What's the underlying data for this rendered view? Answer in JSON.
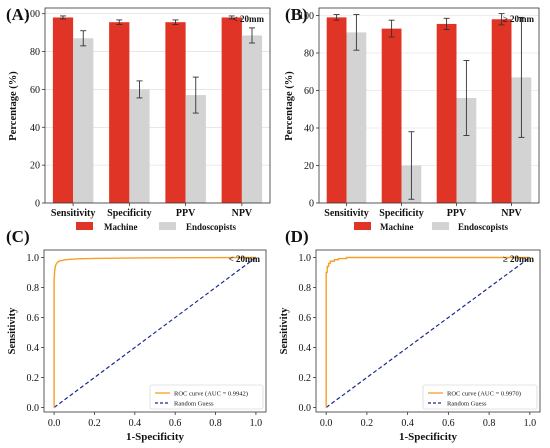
{
  "panels": [
    {
      "label": "(A)",
      "annotation": "< 20mm"
    },
    {
      "label": "(B)",
      "annotation": "≥ 20mm"
    },
    {
      "label": "(C)",
      "annotation": "< 20mm"
    },
    {
      "label": "(D)",
      "annotation": "≥ 20mm"
    }
  ],
  "bar_legend": {
    "machine": "Machine",
    "endoscopists": "Endoscopists"
  },
  "colors": {
    "machine": "#e03426",
    "endoscopists": "#d3d3d3",
    "roc": "#f5a027",
    "random": "#1a2a8c",
    "error": "#333333"
  },
  "chart_data": [
    {
      "type": "bar",
      "panel": "A",
      "annotation": "< 20mm",
      "categories": [
        "Sensitivity",
        "Specificity",
        "PPV",
        "NPV"
      ],
      "series": [
        {
          "name": "Machine",
          "values": [
            98,
            95.5,
            95.5,
            98
          ],
          "err": [
            0.8,
            1.2,
            1.2,
            0.8
          ]
        },
        {
          "name": "Endoscopists",
          "values": [
            87,
            60,
            57,
            88.5
          ],
          "err": [
            4,
            4.5,
            9.5,
            4
          ]
        }
      ],
      "ylabel": "Percentage (%)",
      "ylim": [
        0,
        103
      ],
      "yticks": [
        0,
        20,
        40,
        60,
        80,
        100
      ],
      "grid": true,
      "legend": "bottom"
    },
    {
      "type": "bar",
      "panel": "B",
      "annotation": "≥ 20mm",
      "categories": [
        "Sensitivity",
        "Specificity",
        "PPV",
        "NPV"
      ],
      "series": [
        {
          "name": "Machine",
          "values": [
            99,
            93,
            95.5,
            98
          ],
          "err": [
            1.5,
            4.5,
            3,
            3
          ]
        },
        {
          "name": "Endoscopists",
          "values": [
            91,
            20,
            56,
            67
          ],
          "err": [
            9.5,
            18,
            20,
            32
          ]
        }
      ],
      "ylabel": "Percentage (%)",
      "ylim": [
        0,
        104
      ],
      "yticks": [
        0,
        20,
        40,
        60,
        80,
        100
      ],
      "grid": true,
      "legend": "bottom"
    },
    {
      "type": "line",
      "panel": "C",
      "annotation": "< 20mm",
      "xlabel": "1-Specificity",
      "ylabel": "Sensitivity",
      "xlim": [
        -0.05,
        1.05
      ],
      "ylim": [
        -0.03,
        1.05
      ],
      "xticks": [
        0.0,
        0.2,
        0.4,
        0.6,
        0.8,
        1.0
      ],
      "yticks": [
        0.0,
        0.2,
        0.4,
        0.6,
        0.8,
        1.0
      ],
      "series": [
        {
          "name": "ROC curve (AUC = 0.9942)",
          "x": [
            0,
            0,
            0.003,
            0.006,
            0.01,
            0.015,
            0.02,
            0.03,
            0.05,
            0.08,
            0.12,
            0.2,
            0.35,
            0.5,
            0.7,
            1.0
          ],
          "y": [
            0,
            0.85,
            0.91,
            0.94,
            0.955,
            0.965,
            0.972,
            0.978,
            0.984,
            0.988,
            0.991,
            0.994,
            0.996,
            0.998,
            0.999,
            1.0
          ]
        },
        {
          "name": "Random Guess",
          "x": [
            0,
            1
          ],
          "y": [
            0,
            1
          ]
        }
      ],
      "legend": "bottom-right"
    },
    {
      "type": "line",
      "panel": "D",
      "annotation": "≥ 20mm",
      "xlabel": "1-Specificity",
      "ylabel": "Sensitivity",
      "xlim": [
        -0.05,
        1.05
      ],
      "ylim": [
        -0.03,
        1.05
      ],
      "xticks": [
        0.0,
        0.2,
        0.4,
        0.6,
        0.8,
        1.0
      ],
      "yticks": [
        0.0,
        0.2,
        0.4,
        0.6,
        0.8,
        1.0
      ],
      "series": [
        {
          "name": "ROC curve (AUC = 0.9970)",
          "x": [
            0,
            0,
            0.005,
            0.005,
            0.012,
            0.012,
            0.02,
            0.02,
            0.04,
            0.04,
            0.06,
            0.06,
            0.1,
            0.1,
            1.0
          ],
          "y": [
            0,
            0.9,
            0.9,
            0.94,
            0.94,
            0.96,
            0.96,
            0.975,
            0.975,
            0.985,
            0.985,
            0.993,
            0.993,
            1.0,
            1.0
          ]
        },
        {
          "name": "Random Guess",
          "x": [
            0,
            1
          ],
          "y": [
            0,
            1
          ]
        }
      ],
      "legend": "bottom-right"
    }
  ]
}
